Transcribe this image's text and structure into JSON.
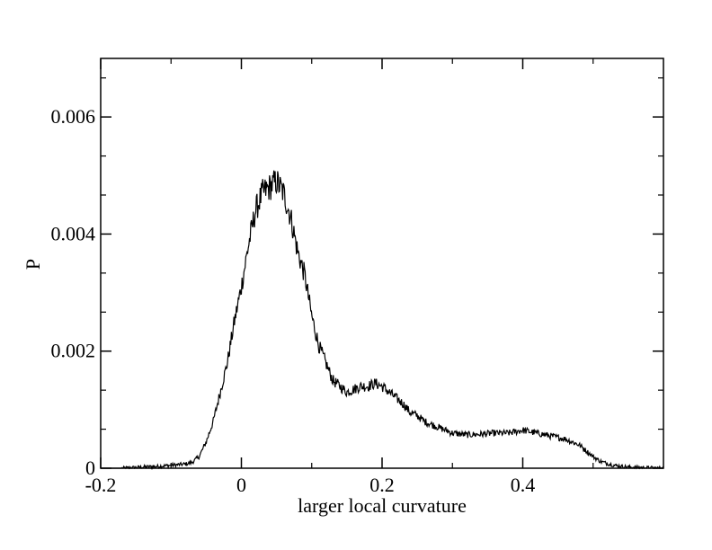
{
  "chart_data": {
    "type": "line",
    "title": "",
    "xlabel": "larger local curvature",
    "ylabel": "P",
    "xlim": [
      -0.2,
      0.6
    ],
    "ylim": [
      0,
      0.007
    ],
    "xticks": [
      -0.2,
      0,
      0.2,
      0.4
    ],
    "xtick_labels": [
      "-0.2",
      "0",
      "0.2",
      "0.4"
    ],
    "yticks": [
      0,
      0.002,
      0.004,
      0.006
    ],
    "ytick_labels": [
      "0",
      "0.002",
      "0.004",
      "0.006"
    ],
    "grid": false,
    "legend": "none",
    "line_color": "#000000",
    "series": [
      {
        "x": [
          -0.2,
          -0.17,
          -0.14,
          -0.12,
          -0.1,
          -0.08,
          -0.07,
          -0.06,
          -0.05,
          -0.04,
          -0.03,
          -0.02,
          -0.01,
          0,
          0.01,
          0.02,
          0.03,
          0.04,
          0.05,
          0.06,
          0.07,
          0.08,
          0.09,
          0.1,
          0.11,
          0.12,
          0.13,
          0.14,
          0.15,
          0.16,
          0.17,
          0.18,
          0.19,
          0.2,
          0.21,
          0.22,
          0.23,
          0.24,
          0.25,
          0.26,
          0.28,
          0.3,
          0.32,
          0.34,
          0.36,
          0.38,
          0.4,
          0.42,
          0.44,
          0.46,
          0.48,
          0.49,
          0.5,
          0.51,
          0.52,
          0.53,
          0.55,
          0.57,
          0.6
        ],
        "y": [
          0,
          0,
          2e-05,
          3e-05,
          5e-05,
          7e-05,
          0.0001,
          0.0002,
          0.00045,
          0.0008,
          0.0013,
          0.0018,
          0.0025,
          0.0031,
          0.0038,
          0.0044,
          0.0047,
          0.0048,
          0.0049,
          0.0047,
          0.0043,
          0.0037,
          0.0033,
          0.0026,
          0.0021,
          0.0018,
          0.0015,
          0.0014,
          0.0013,
          0.00135,
          0.0014,
          0.0014,
          0.00145,
          0.0014,
          0.0013,
          0.0012,
          0.0011,
          0.00095,
          0.0009,
          0.0008,
          0.0007,
          0.0006,
          0.00057,
          0.00058,
          0.0006,
          0.0006,
          0.00065,
          0.0006,
          0.00055,
          0.0005,
          0.0004,
          0.0003,
          0.0002,
          0.00012,
          8e-05,
          5e-05,
          2e-05,
          1e-05,
          0
        ]
      }
    ]
  }
}
